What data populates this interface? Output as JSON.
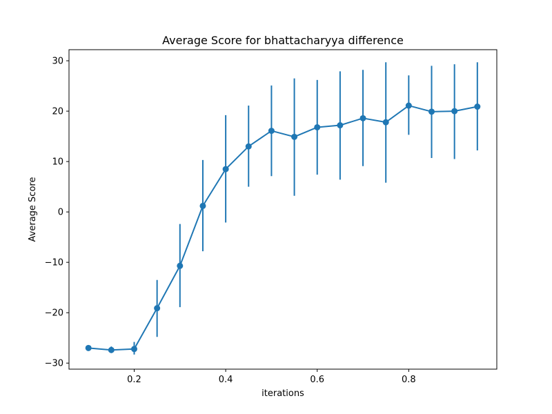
{
  "chart_data": {
    "type": "line",
    "title": "Average Score for bhattacharyya difference",
    "xlabel": "iterations",
    "ylabel": "Average Score",
    "xlim": [
      0.0575,
      0.9925
    ],
    "ylim": [
      -31.2,
      32.2
    ],
    "grid": false,
    "x_ticks": [
      {
        "value": 0.2,
        "label": "0.2"
      },
      {
        "value": 0.4,
        "label": "0.4"
      },
      {
        "value": 0.6,
        "label": "0.6"
      },
      {
        "value": 0.8,
        "label": "0.8"
      }
    ],
    "y_ticks": [
      {
        "value": -30,
        "label": "−30"
      },
      {
        "value": -20,
        "label": "−20"
      },
      {
        "value": -10,
        "label": "−10"
      },
      {
        "value": 0,
        "label": "0"
      },
      {
        "value": 10,
        "label": "10"
      },
      {
        "value": 20,
        "label": "20"
      },
      {
        "value": 30,
        "label": "30"
      }
    ],
    "series": [
      {
        "color": "#1f77b4",
        "x": [
          0.1,
          0.15,
          0.2,
          0.25,
          0.3,
          0.35,
          0.4,
          0.45,
          0.5,
          0.55,
          0.6,
          0.65,
          0.7,
          0.75,
          0.8,
          0.85,
          0.9,
          0.95
        ],
        "y": [
          -27.0,
          -27.4,
          -27.2,
          -19.1,
          -10.7,
          1.2,
          8.5,
          13.0,
          16.1,
          14.9,
          16.8,
          17.2,
          18.6,
          17.8,
          21.1,
          19.9,
          20.0,
          20.9
        ],
        "err_low": [
          -27.0,
          -28.0,
          -28.3,
          -24.8,
          -18.9,
          -7.8,
          -2.1,
          5.0,
          7.1,
          3.2,
          7.4,
          6.4,
          9.1,
          5.8,
          15.3,
          10.7,
          10.5,
          12.2
        ],
        "err_high": [
          -27.0,
          -26.7,
          -25.8,
          -13.5,
          -2.4,
          10.3,
          19.2,
          21.1,
          25.1,
          26.5,
          26.2,
          27.9,
          28.2,
          29.7,
          27.1,
          29.0,
          29.3,
          29.7
        ]
      }
    ]
  }
}
